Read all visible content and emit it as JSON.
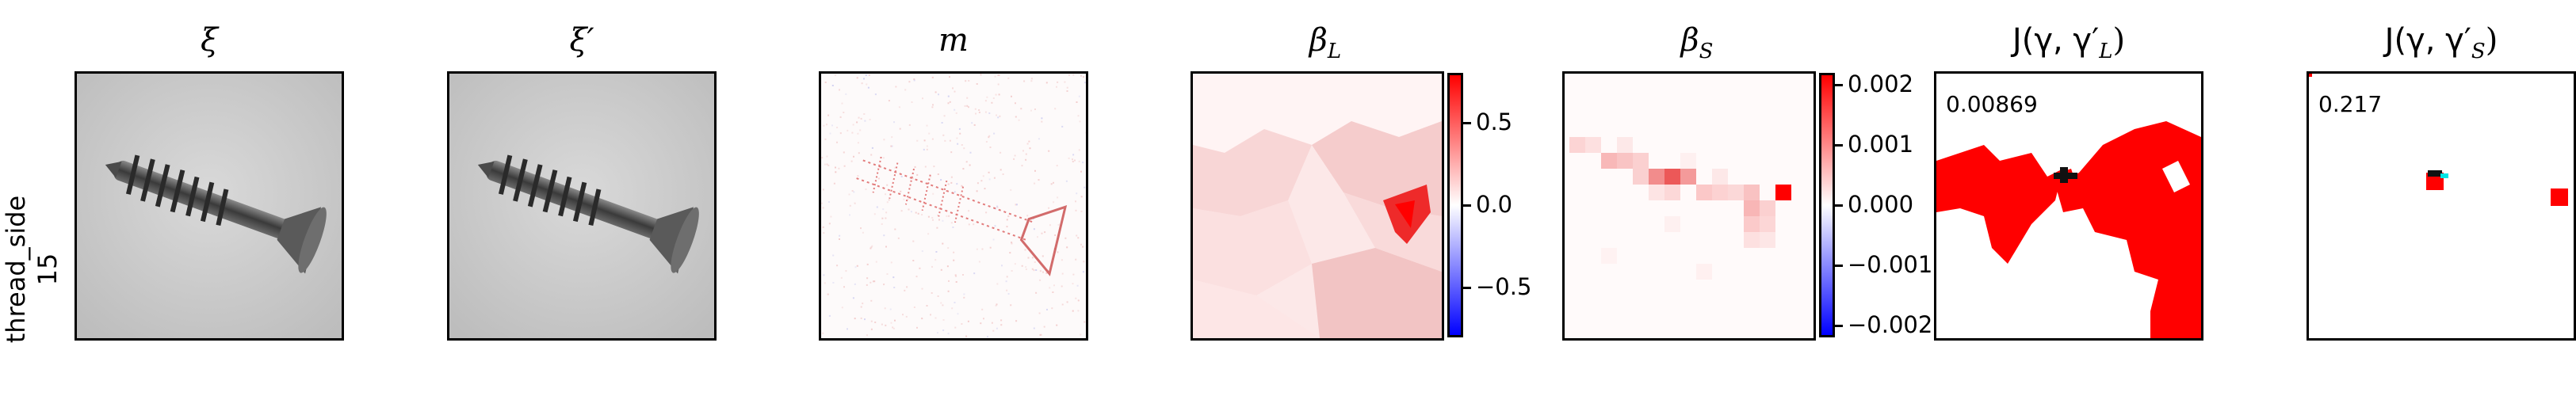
{
  "row_label": {
    "line1": "thread_side",
    "line2": "15"
  },
  "panels": [
    {
      "key": "xi",
      "title": "ξ"
    },
    {
      "key": "xi_prime",
      "title": "ξ′"
    },
    {
      "key": "m",
      "title": "m"
    },
    {
      "key": "beta_L",
      "title": "β",
      "sub": "L"
    },
    {
      "key": "beta_S",
      "title": "β",
      "sub": "S"
    },
    {
      "key": "J_L",
      "title": "J(γ, γ′",
      "sub": "L",
      "close": ")"
    },
    {
      "key": "J_S",
      "title": "J(γ, γ′",
      "sub": "S",
      "close": ")"
    }
  ],
  "colorbar_L": {
    "ticks": [
      "0.5",
      "0.0",
      "−0.5"
    ],
    "tick_values": [
      0.5,
      0.0,
      -0.5
    ],
    "range": [
      -0.8,
      0.8
    ]
  },
  "colorbar_S": {
    "ticks": [
      "0.002",
      "0.001",
      "0.000",
      "−0.001",
      "−0.002"
    ],
    "tick_values": [
      0.002,
      0.001,
      0.0,
      -0.001,
      -0.002
    ],
    "range": [
      -0.0022,
      0.0022
    ]
  },
  "scores": {
    "J_L": "0.00869",
    "J_S": "0.217"
  },
  "colors": {
    "red": "#ff0000",
    "blue": "#0000ff",
    "cyan": "#00e5e5"
  }
}
